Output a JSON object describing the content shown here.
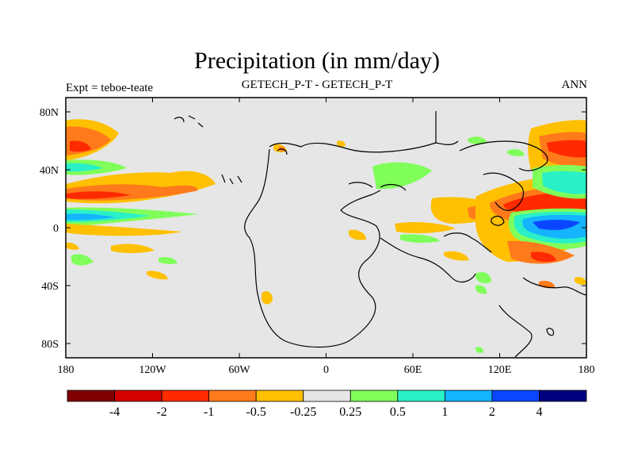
{
  "title": "Precipitation (in mm/day)",
  "subtitle_left": "Expt = teboe-teate",
  "subtitle_center": "GETECH_P-T - GETECH_P-T",
  "subtitle_right": "ANN",
  "y_ticks": [
    "80N",
    "40N",
    "0",
    "40S",
    "80S"
  ],
  "x_ticks": [
    "180",
    "120W",
    "60W",
    "0",
    "60E",
    "120E",
    "180"
  ],
  "colorbar": {
    "colors": [
      "#800000",
      "#d40000",
      "#ff2a00",
      "#ff7a1a",
      "#ffc000",
      "#e6e6e6",
      "#80ff5a",
      "#2af0c8",
      "#14b4ff",
      "#0a46ff",
      "#000080"
    ],
    "labels": [
      "-4",
      "-2",
      "-1",
      "-0.5",
      "-0.25",
      "0.25",
      "0.5",
      "1",
      "2",
      "4"
    ]
  }
}
